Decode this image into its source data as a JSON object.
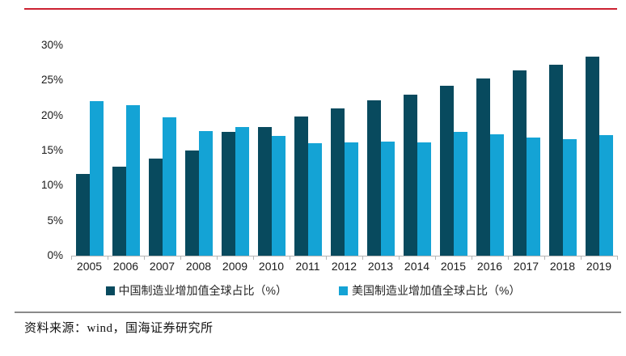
{
  "accent": {
    "top_rule_color": "#cc2231",
    "separator_color": "#8a8a8a"
  },
  "chart_data": {
    "type": "bar",
    "categories": [
      "2005",
      "2006",
      "2007",
      "2008",
      "2009",
      "2010",
      "2011",
      "2012",
      "2013",
      "2014",
      "2015",
      "2016",
      "2017",
      "2018",
      "2019"
    ],
    "series": [
      {
        "name": "中国制造业增加值全球占比（%）",
        "color": "#084a5e",
        "values": [
          11.7,
          12.7,
          13.9,
          15.0,
          17.6,
          18.4,
          19.8,
          21.0,
          22.1,
          23.0,
          24.2,
          25.3,
          26.4,
          27.2,
          28.4
        ]
      },
      {
        "name": "美国制造业增加值全球占比（%）",
        "color": "#14a3d5",
        "values": [
          22.0,
          21.5,
          19.7,
          17.8,
          18.4,
          17.1,
          16.0,
          16.1,
          16.3,
          16.2,
          17.6,
          17.3,
          16.8,
          16.6,
          17.2
        ]
      }
    ],
    "title": "",
    "xlabel": "",
    "ylabel": "",
    "ylim": [
      0,
      30
    ],
    "ytick_step": 5,
    "ytick_labels": [
      "0%",
      "5%",
      "10%",
      "15%",
      "20%",
      "25%",
      "30%"
    ],
    "grid": false,
    "legend_position": "bottom"
  },
  "footer": {
    "source_text": "资料来源：wind，国海证券研究所"
  }
}
